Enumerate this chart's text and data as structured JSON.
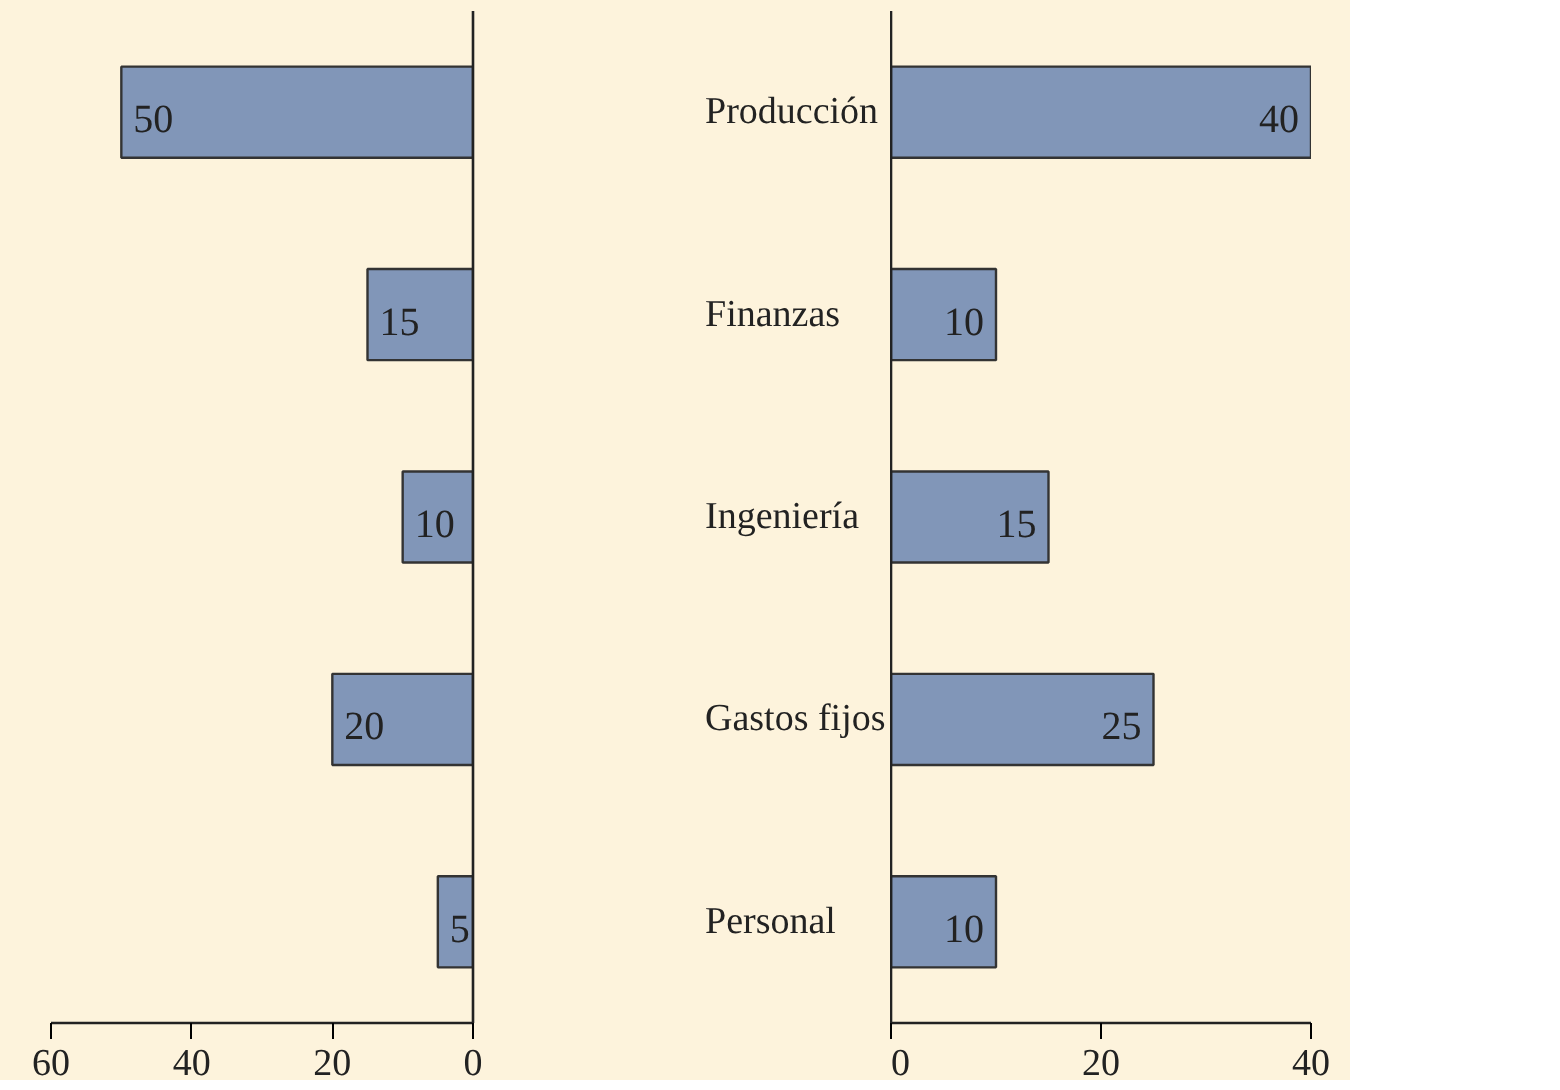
{
  "chart_data": [
    {
      "type": "bar",
      "orientation": "horizontal",
      "categories": [
        "Producción",
        "Finanzas",
        "Ingeniería",
        "Gastos fijos",
        "Personal"
      ],
      "values": [
        50,
        15,
        10,
        20,
        5
      ],
      "color": "#8196b8",
      "xlim": [
        60,
        0
      ],
      "xticks": [
        60,
        40,
        20,
        0
      ],
      "data_labels": true
    },
    {
      "type": "bar",
      "orientation": "horizontal",
      "categories": [
        null,
        null,
        null,
        null,
        null
      ],
      "values": [
        40,
        10,
        15,
        25,
        10
      ],
      "color": "#8196b8",
      "xlim": [
        0,
        40
      ],
      "xticks": [
        0,
        20,
        40
      ],
      "data_labels": true,
      "tick_labels": "x"
    }
  ]
}
